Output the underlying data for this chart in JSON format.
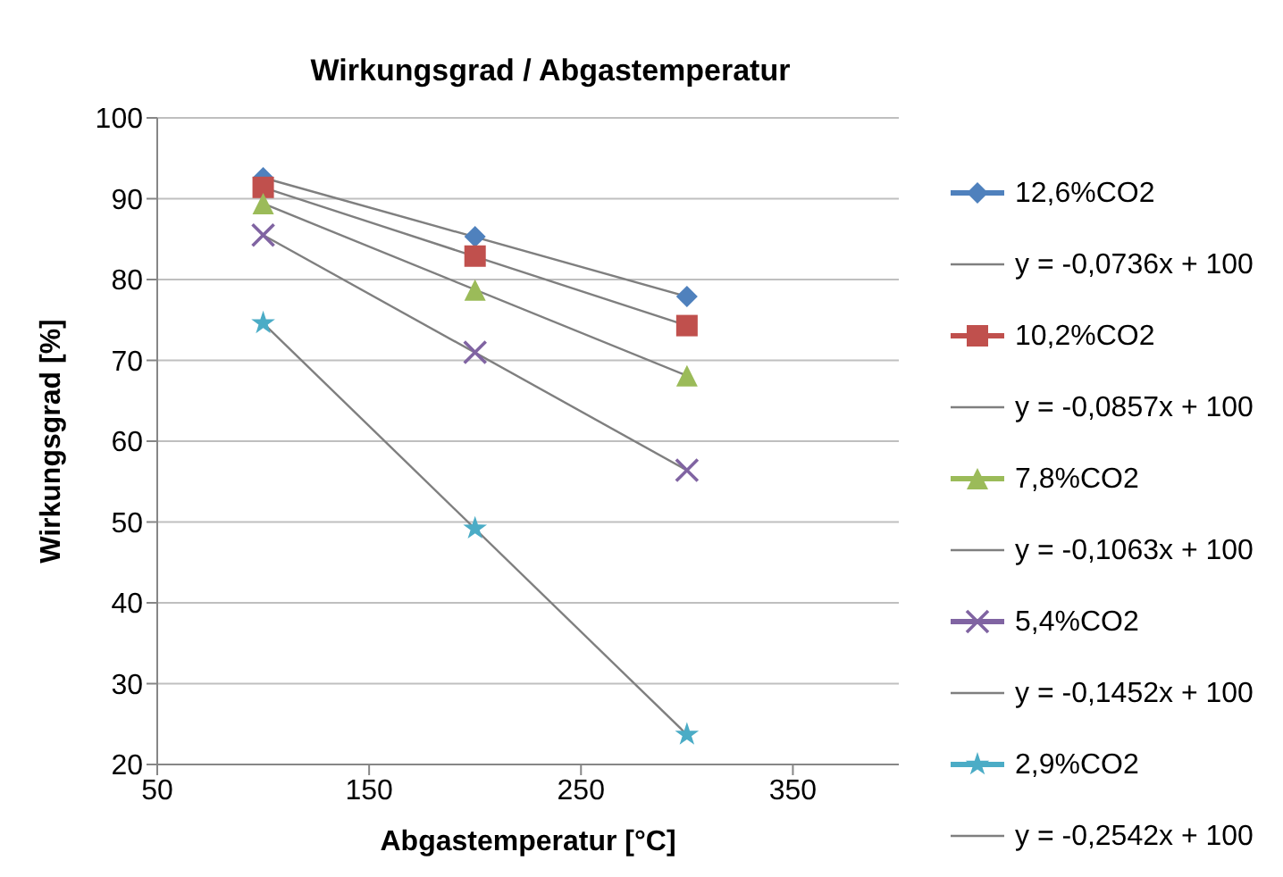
{
  "chart_data": {
    "type": "scatter",
    "title": "Wirkungsgrad / Abgastemperatur",
    "xlabel": "Abgastemperatur [°C]",
    "ylabel": "Wirkungsgrad [%]",
    "xlim": [
      50,
      400
    ],
    "xticks": [
      50,
      150,
      250,
      350
    ],
    "ylim": [
      20,
      100
    ],
    "yticks": [
      20,
      30,
      40,
      50,
      60,
      70,
      80,
      90,
      100
    ],
    "grid": "y",
    "legend": "right",
    "series": [
      {
        "name": "12,6%CO2",
        "color": "#4f81bd",
        "marker": "diamond",
        "x": [
          100,
          200,
          300
        ],
        "values": [
          92.6,
          85.3,
          77.9
        ]
      },
      {
        "name": "y = -0,0736x + 100",
        "type": "line",
        "color": "#7f7f7f",
        "marker": "none",
        "x": [
          100,
          300
        ],
        "values": [
          92.6,
          77.9
        ]
      },
      {
        "name": "10,2%CO2",
        "color": "#c0504d",
        "marker": "square",
        "x": [
          100,
          200,
          300
        ],
        "values": [
          91.4,
          82.9,
          74.3
        ]
      },
      {
        "name": "y = -0,0857x + 100",
        "type": "line",
        "color": "#7f7f7f",
        "marker": "none",
        "x": [
          100,
          300
        ],
        "values": [
          91.4,
          74.3
        ]
      },
      {
        "name": "7,8%CO2",
        "color": "#9bbb59",
        "marker": "triangle",
        "x": [
          100,
          200,
          300
        ],
        "values": [
          89.4,
          78.7,
          68.1
        ]
      },
      {
        "name": "y = -0,1063x + 100",
        "type": "line",
        "color": "#7f7f7f",
        "marker": "none",
        "x": [
          100,
          300
        ],
        "values": [
          89.4,
          68.1
        ]
      },
      {
        "name": "5,4%CO2",
        "color": "#8064a2",
        "marker": "cross",
        "x": [
          100,
          200,
          300
        ],
        "values": [
          85.5,
          71.0,
          56.4
        ]
      },
      {
        "name": "y = -0,1452x + 100",
        "type": "line",
        "color": "#7f7f7f",
        "marker": "none",
        "x": [
          100,
          300
        ],
        "values": [
          85.5,
          56.4
        ]
      },
      {
        "name": "2,9%CO2",
        "color": "#4bacc6",
        "marker": "star",
        "x": [
          100,
          200,
          300
        ],
        "values": [
          74.6,
          49.2,
          23.7
        ]
      },
      {
        "name": "y = -0,2542x + 100",
        "type": "line",
        "color": "#7f7f7f",
        "marker": "none",
        "x": [
          100,
          300
        ],
        "values": [
          74.6,
          23.7
        ]
      }
    ]
  }
}
